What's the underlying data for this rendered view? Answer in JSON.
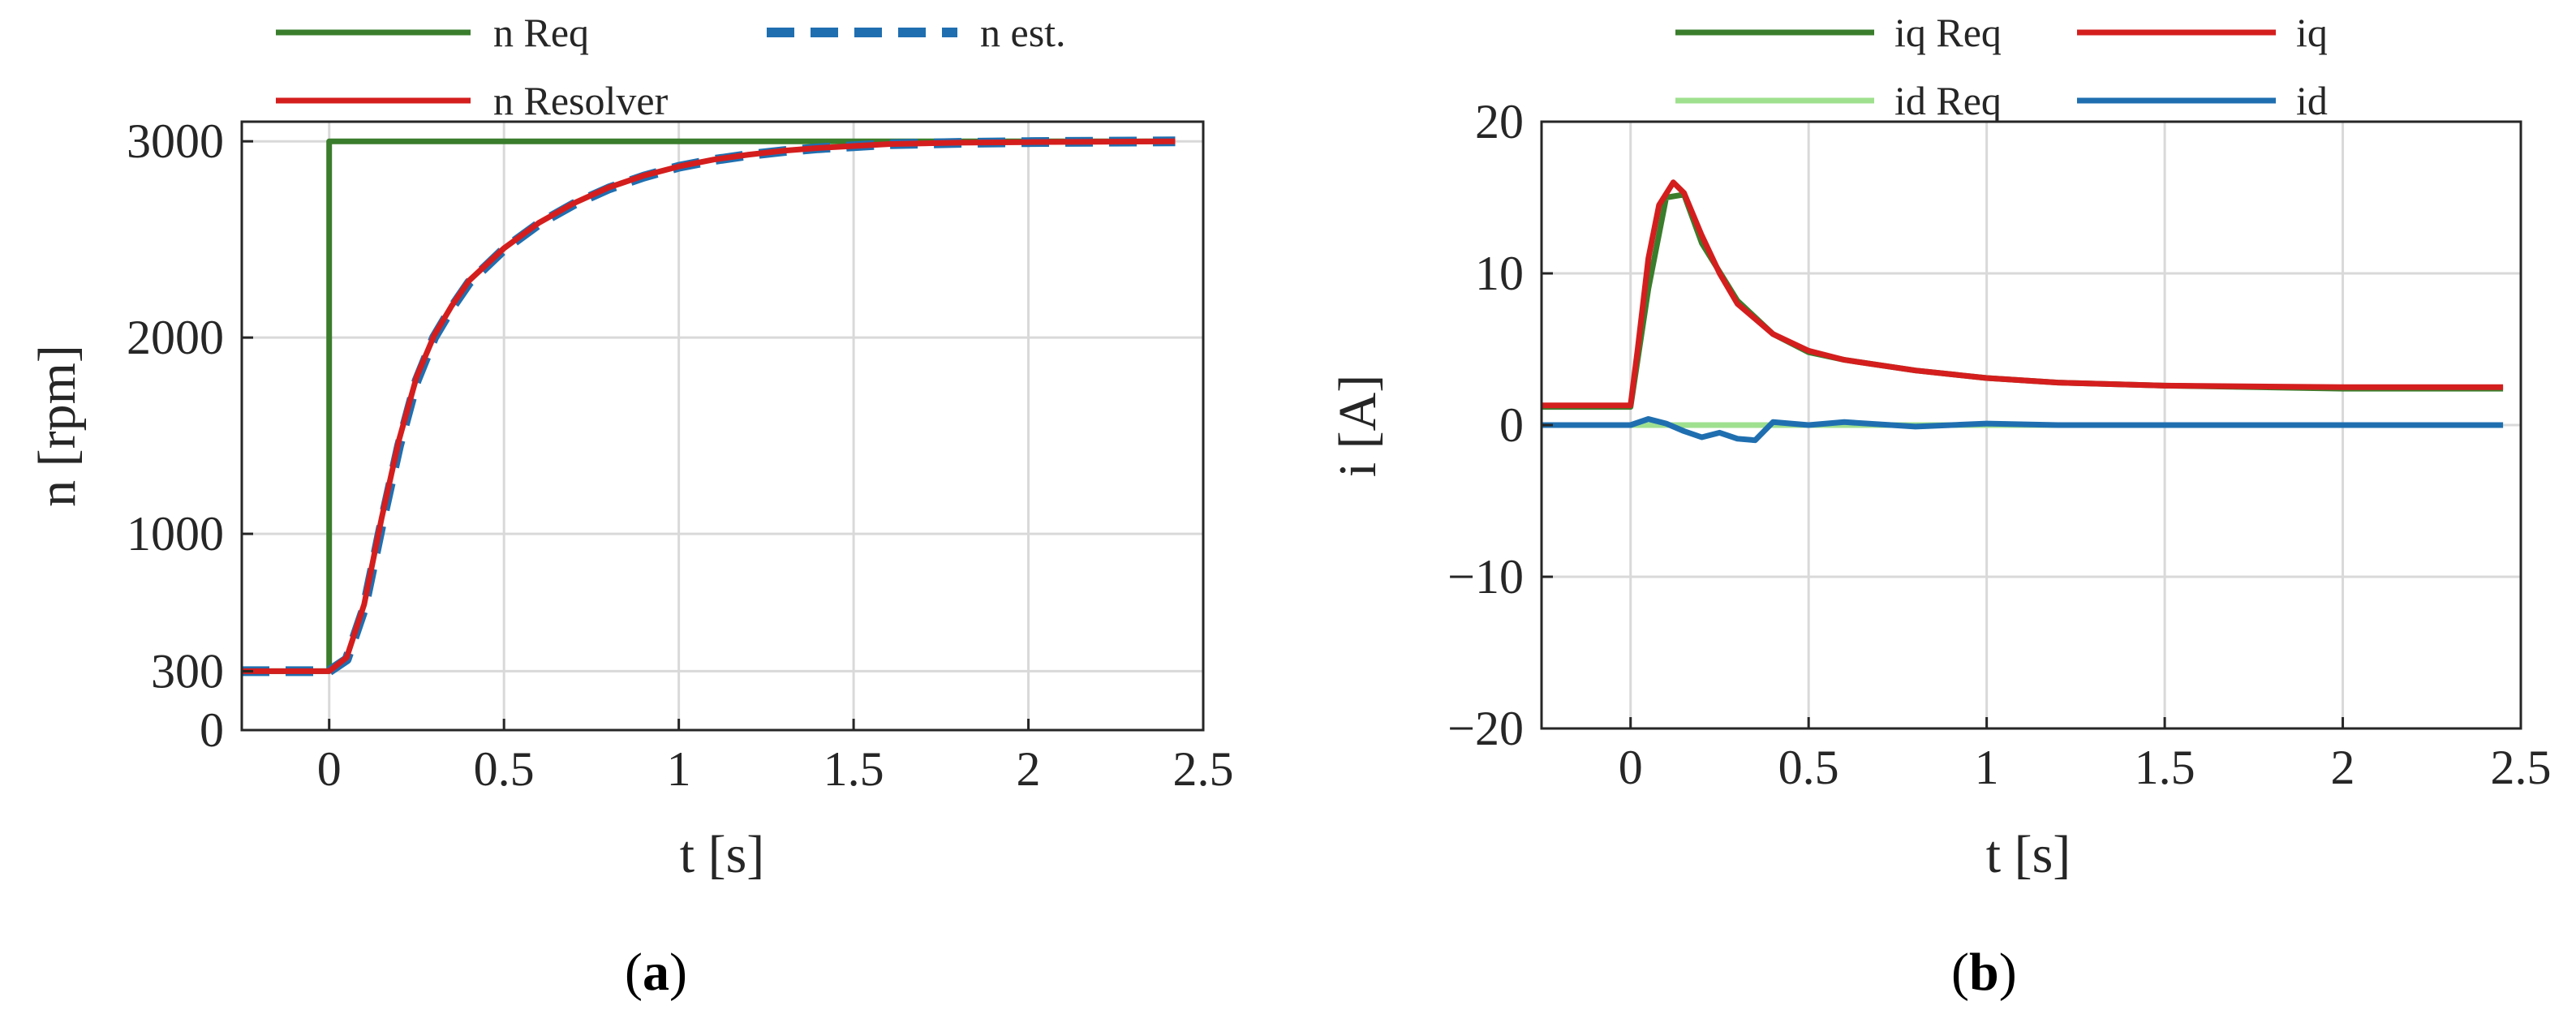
{
  "chart_data": [
    {
      "type": "line",
      "panel_label": "a",
      "xlabel": "t [s]",
      "ylabel": "n [rpm]",
      "xlim": [
        -0.25,
        2.5
      ],
      "ylim": [
        0,
        3100
      ],
      "xticks": [
        0,
        0.5,
        1,
        1.5,
        2,
        2.5
      ],
      "xtick_labels": [
        "0",
        "0.5",
        "1",
        "1.5",
        "2",
        "2.5"
      ],
      "yticks": [
        0,
        300,
        1000,
        2000,
        3000
      ],
      "ytick_labels": [
        "0",
        "300",
        "1000",
        "2000",
        "3000"
      ],
      "grid": true,
      "legend_position": "top, outside plot, two columns",
      "series": [
        {
          "name": "n Req",
          "color": "#3a7d2c",
          "style": "solid",
          "x": [
            -0.25,
            0,
            0,
            2.42
          ],
          "y": [
            300,
            300,
            3000,
            3000
          ]
        },
        {
          "name": "n est.",
          "color": "#1f6fb0",
          "style": "dashed",
          "x": [
            -0.25,
            -0.1,
            0,
            0.05,
            0.1,
            0.15,
            0.2,
            0.25,
            0.3,
            0.35,
            0.4,
            0.5,
            0.6,
            0.7,
            0.8,
            0.9,
            1.0,
            1.1,
            1.2,
            1.3,
            1.4,
            1.5,
            1.6,
            1.8,
            2.0,
            2.2,
            2.42
          ],
          "y": [
            300,
            300,
            300,
            360,
            620,
            1050,
            1450,
            1780,
            2000,
            2150,
            2280,
            2450,
            2580,
            2680,
            2760,
            2820,
            2870,
            2905,
            2930,
            2950,
            2965,
            2975,
            2985,
            2992,
            2996,
            2998,
            3000
          ]
        },
        {
          "name": "n Resolver",
          "color": "#d41e1e",
          "style": "solid",
          "x": [
            -0.25,
            -0.1,
            0,
            0.05,
            0.1,
            0.15,
            0.2,
            0.25,
            0.3,
            0.35,
            0.4,
            0.5,
            0.6,
            0.7,
            0.8,
            0.9,
            1.0,
            1.1,
            1.2,
            1.3,
            1.4,
            1.5,
            1.6,
            1.8,
            2.0,
            2.2,
            2.42
          ],
          "y": [
            300,
            300,
            300,
            370,
            640,
            1080,
            1480,
            1800,
            2010,
            2160,
            2290,
            2455,
            2585,
            2685,
            2765,
            2825,
            2872,
            2907,
            2932,
            2952,
            2966,
            2976,
            2986,
            2993,
            2996,
            2998,
            3000
          ]
        }
      ]
    },
    {
      "type": "line",
      "panel_label": "b",
      "xlabel": "t [s]",
      "ylabel": "i [A]",
      "xlim": [
        -0.25,
        2.5
      ],
      "ylim": [
        -20,
        20
      ],
      "xticks": [
        0,
        0.5,
        1,
        1.5,
        2,
        2.5
      ],
      "xtick_labels": [
        "0",
        "0.5",
        "1",
        "1.5",
        "2",
        "2.5"
      ],
      "yticks": [
        -20,
        -10,
        0,
        10,
        20
      ],
      "ytick_labels": [
        "−20",
        "−10",
        "0",
        "10",
        "20"
      ],
      "grid": true,
      "legend_position": "top, outside plot, two columns",
      "series": [
        {
          "name": "iq Req",
          "color": "#3a7d2c",
          "style": "solid",
          "x": [
            -0.25,
            0,
            0.05,
            0.1,
            0.15,
            0.2,
            0.3,
            0.4,
            0.5,
            0.6,
            0.8,
            1.0,
            1.2,
            1.5,
            2.0,
            2.45
          ],
          "y": [
            1.2,
            1.2,
            9.0,
            15.0,
            15.2,
            12.0,
            8.2,
            6.0,
            4.8,
            4.3,
            3.6,
            3.1,
            2.8,
            2.6,
            2.4,
            2.4
          ]
        },
        {
          "name": "iq",
          "color": "#d41e1e",
          "style": "solid",
          "x": [
            -0.25,
            0,
            0.02,
            0.05,
            0.08,
            0.12,
            0.15,
            0.2,
            0.25,
            0.3,
            0.4,
            0.5,
            0.6,
            0.8,
            1.0,
            1.2,
            1.5,
            2.0,
            2.45
          ],
          "y": [
            1.3,
            1.3,
            5.0,
            11.0,
            14.5,
            16.0,
            15.3,
            12.5,
            10.0,
            8.0,
            6.0,
            4.9,
            4.3,
            3.6,
            3.1,
            2.8,
            2.6,
            2.5,
            2.5
          ]
        },
        {
          "name": "id Req",
          "color": "#9fe08f",
          "style": "solid",
          "x": [
            -0.25,
            2.45
          ],
          "y": [
            0,
            0
          ]
        },
        {
          "name": "id",
          "color": "#1f6fb0",
          "style": "solid",
          "x": [
            -0.25,
            0,
            0.05,
            0.1,
            0.15,
            0.2,
            0.25,
            0.3,
            0.35,
            0.4,
            0.5,
            0.6,
            0.8,
            1.0,
            1.2,
            1.5,
            2.0,
            2.45
          ],
          "y": [
            0,
            0,
            0.4,
            0.1,
            -0.4,
            -0.8,
            -0.5,
            -0.9,
            -1.0,
            0.2,
            0,
            0.2,
            -0.1,
            0.1,
            0,
            0,
            0,
            0
          ]
        }
      ]
    }
  ]
}
